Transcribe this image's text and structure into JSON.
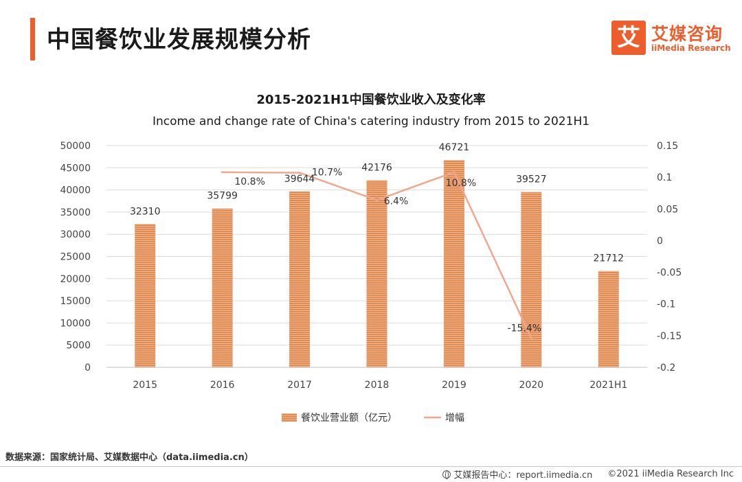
{
  "header": {
    "title": "中国餐饮业发展规模分析",
    "logo_mark": "艾",
    "logo_cn": "艾媒咨询",
    "logo_en": "iiMedia Research"
  },
  "footer": {
    "source": "数据来源：国家统计局、艾媒数据中心（data.iimedia.cn）",
    "report_site": "艾媒报告中心：report.iimedia.cn",
    "copyright": "©2021  iiMedia Research  Inc"
  },
  "colors": {
    "accent": "#ee5e2c",
    "bar": "#e08a54",
    "line": "#f0a78e"
  },
  "chart_data": {
    "type": "bar",
    "title": "2015-2021H1中国餐饮业收入及变化率",
    "subtitle": "Income and change rate of China's catering industry from 2015 to 2021H1",
    "categories": [
      "2015",
      "2016",
      "2017",
      "2018",
      "2019",
      "2020",
      "2021H1"
    ],
    "series": [
      {
        "name": "餐饮业营业额（亿元）",
        "type": "bar",
        "axis": "left",
        "values": [
          32310,
          35799,
          39644,
          42176,
          46721,
          39527,
          21712
        ],
        "labels": [
          "32310",
          "35799",
          "39644",
          "42176",
          "46721",
          "39527",
          "21712"
        ]
      },
      {
        "name": "增幅",
        "type": "line",
        "axis": "right",
        "values": [
          null,
          0.108,
          0.107,
          0.064,
          0.108,
          -0.154,
          null
        ],
        "labels": [
          "",
          "10.8%",
          "10.7%",
          "6.4%",
          "10.8%",
          "-15.4%",
          ""
        ]
      }
    ],
    "y_left": {
      "min": 0,
      "max": 50000,
      "ticks": [
        "0",
        "5000",
        "10000",
        "15000",
        "20000",
        "25000",
        "30000",
        "35000",
        "40000",
        "45000",
        "50000"
      ]
    },
    "y_right": {
      "min": -0.2,
      "max": 0.15,
      "ticks": [
        "-0.2",
        "-0.15",
        "-0.1",
        "-0.05",
        "0",
        "0.05",
        "0.1",
        "0.15"
      ]
    },
    "grid": true,
    "legend": "bottom-center"
  }
}
